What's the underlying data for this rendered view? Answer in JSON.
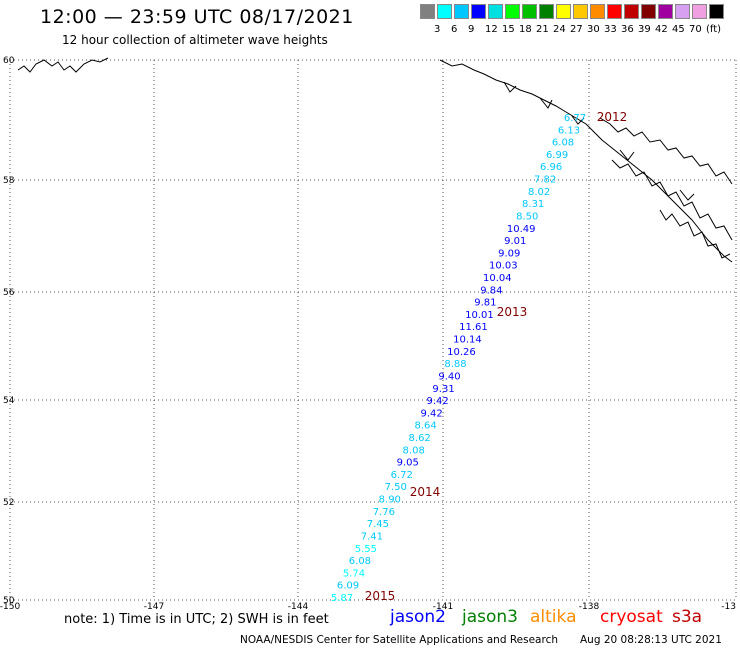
{
  "header": {
    "title": "12:00 — 23:59 UTC 08/17/2021",
    "subtitle": "12 hour collection of altimeter wave heights"
  },
  "legend": {
    "colors": [
      "#808080",
      "#00ffff",
      "#00c8ff",
      "#0000ff",
      "#00e0e0",
      "#00ff00",
      "#00c000",
      "#008000",
      "#ffff00",
      "#ffc800",
      "#ff8c00",
      "#ff0000",
      "#c00000",
      "#800000",
      "#a000a0",
      "#d8a0f0",
      "#f0a0e0",
      "#000000"
    ],
    "labels": [
      "3",
      "6",
      "9",
      "12",
      "15",
      "18",
      "21",
      "24",
      "27",
      "30",
      "33",
      "36",
      "39",
      "42",
      "45",
      "70",
      "(ft)"
    ]
  },
  "axes": {
    "lat_labels": [
      "60",
      "58",
      "56",
      "54",
      "52",
      "50"
    ],
    "lon_labels": [
      "-150",
      "-147",
      "-144",
      "-141",
      "-138",
      "-13"
    ]
  },
  "track_labels": [
    "2012",
    "2013",
    "2014",
    "2015"
  ],
  "observations": [
    {
      "v": "6.77",
      "c": "#00c8ff"
    },
    {
      "v": "6.13",
      "c": "#00c8ff"
    },
    {
      "v": "6.08",
      "c": "#00c8ff"
    },
    {
      "v": "6.99",
      "c": "#00c8ff"
    },
    {
      "v": "6.96",
      "c": "#00c8ff"
    },
    {
      "v": "7.82",
      "c": "#00c8ff"
    },
    {
      "v": "8.02",
      "c": "#00c8ff"
    },
    {
      "v": "8.31",
      "c": "#00c8ff"
    },
    {
      "v": "8.50",
      "c": "#00c8ff"
    },
    {
      "v": "10.49",
      "c": "#0000ff"
    },
    {
      "v": "9.01",
      "c": "#0000ff"
    },
    {
      "v": "9.09",
      "c": "#0000ff"
    },
    {
      "v": "10.03",
      "c": "#0000ff"
    },
    {
      "v": "10.04",
      "c": "#0000ff"
    },
    {
      "v": "9.84",
      "c": "#0000ff"
    },
    {
      "v": "9.81",
      "c": "#0000ff"
    },
    {
      "v": "10.01",
      "c": "#0000ff"
    },
    {
      "v": "11.61",
      "c": "#0000ff"
    },
    {
      "v": "10.14",
      "c": "#0000ff"
    },
    {
      "v": "10.26",
      "c": "#0000ff"
    },
    {
      "v": "8.88",
      "c": "#00c8ff"
    },
    {
      "v": "9.40",
      "c": "#0000ff"
    },
    {
      "v": "9.31",
      "c": "#0000ff"
    },
    {
      "v": "9.42",
      "c": "#0000ff"
    },
    {
      "v": "9.42",
      "c": "#0000ff"
    },
    {
      "v": "8.64",
      "c": "#00c8ff"
    },
    {
      "v": "8.62",
      "c": "#00c8ff"
    },
    {
      "v": "8.08",
      "c": "#00c8ff"
    },
    {
      "v": "9.05",
      "c": "#0000ff"
    },
    {
      "v": "6.72",
      "c": "#00c8ff"
    },
    {
      "v": "7.50",
      "c": "#00c8ff"
    },
    {
      "v": "8.90",
      "c": "#00c8ff"
    },
    {
      "v": "7.76",
      "c": "#00c8ff"
    },
    {
      "v": "7.45",
      "c": "#00c8ff"
    },
    {
      "v": "7.41",
      "c": "#00c8ff"
    },
    {
      "v": "5.55",
      "c": "#00ffff"
    },
    {
      "v": "6.08",
      "c": "#00c8ff"
    },
    {
      "v": "5.74",
      "c": "#00ffff"
    },
    {
      "v": "6.09",
      "c": "#00c8ff"
    },
    {
      "v": "5.87",
      "c": "#00ffff"
    }
  ],
  "footer": {
    "note": "note: 1) Time is in UTC; 2) SWH is in feet",
    "satellites": [
      {
        "name": "jason2",
        "color": "#0000ff"
      },
      {
        "name": "jason3",
        "color": "#008000"
      },
      {
        "name": "altika",
        "color": "#ff8c00"
      },
      {
        "name": "cryosat",
        "color": "#ff0000"
      },
      {
        "name": "s3a",
        "color": "#c00000"
      }
    ],
    "credit": "NOAA/NESDIS Center for Satellite Applications and Research",
    "timestamp": "Aug 20 08:28:13 UTC 2021"
  }
}
